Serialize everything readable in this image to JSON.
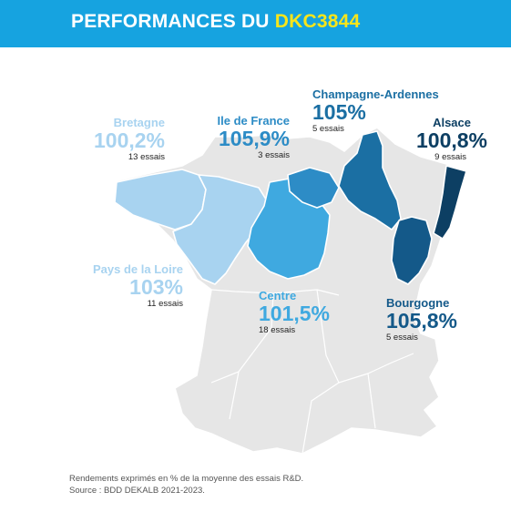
{
  "header": {
    "title_prefix": "PERFORMANCES DU",
    "title_highlight": "DKC3844",
    "background": "#16a3e0",
    "highlight_color": "#f7e51b"
  },
  "map": {
    "base_color": "#e6e6e6",
    "regions": {
      "bretagne": {
        "name": "Bretagne",
        "value": "100,2%",
        "trials": "13 essais",
        "color": "#a8d3f0"
      },
      "pdl": {
        "name": "Pays de la Loire",
        "value": "103%",
        "trials": "11 essais",
        "color": "#a8d3f0"
      },
      "idf": {
        "name": "Ile de France",
        "value": "105,9%",
        "trials": "3 essais",
        "color": "#2d8cc6"
      },
      "centre": {
        "name": "Centre",
        "value": "101,5%",
        "trials": "18 essais",
        "color": "#3fa9e0"
      },
      "champagne": {
        "name": "Champagne-Ardennes",
        "value": "105%",
        "trials": "5 essais",
        "color": "#1b6fa3"
      },
      "alsace": {
        "name": "Alsace",
        "value": "100,8%",
        "trials": "9 essais",
        "color": "#0d3f63"
      },
      "bourgogne": {
        "name": "Bourgogne",
        "value": "105,8%",
        "trials": "5 essais",
        "color": "#145989"
      }
    }
  },
  "footer": {
    "line1": "Rendements exprimés en % de la moyenne des essais R&D.",
    "line2": "Source : BDD DEKALB 2021-2023."
  }
}
